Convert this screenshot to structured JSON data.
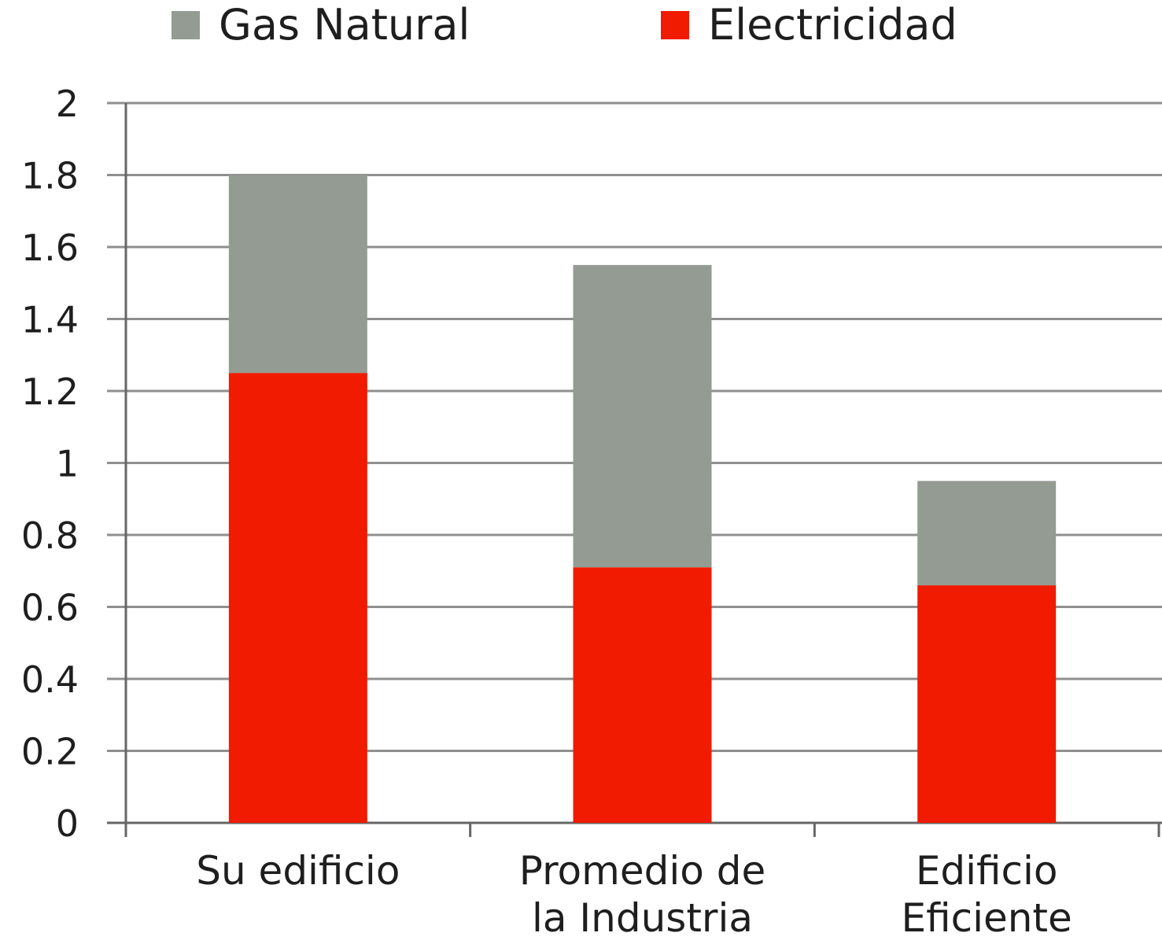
{
  "chart_data": {
    "type": "bar",
    "stacked": true,
    "categories": [
      [
        "Su edificio"
      ],
      [
        "Promedio de",
        "la Industria"
      ],
      [
        "Edificio",
        "Eficiente"
      ]
    ],
    "series": [
      {
        "name": "Electricidad",
        "color": "#f01b00",
        "values": [
          1.25,
          0.71,
          0.66
        ]
      },
      {
        "name": "Gas Natural",
        "color": "#939b92",
        "values": [
          0.55,
          0.84,
          0.29
        ]
      }
    ],
    "legend_order": [
      "Gas Natural",
      "Electricidad"
    ],
    "legend_position": "top",
    "yticks": [
      "0",
      "0.2",
      "0.4",
      "0.6",
      "0.8",
      "1",
      "1.2",
      "1.4",
      "1.6",
      "1.8",
      "2"
    ],
    "ylim": [
      0,
      2
    ],
    "grid": true,
    "title": "",
    "xlabel": "",
    "ylabel": ""
  }
}
